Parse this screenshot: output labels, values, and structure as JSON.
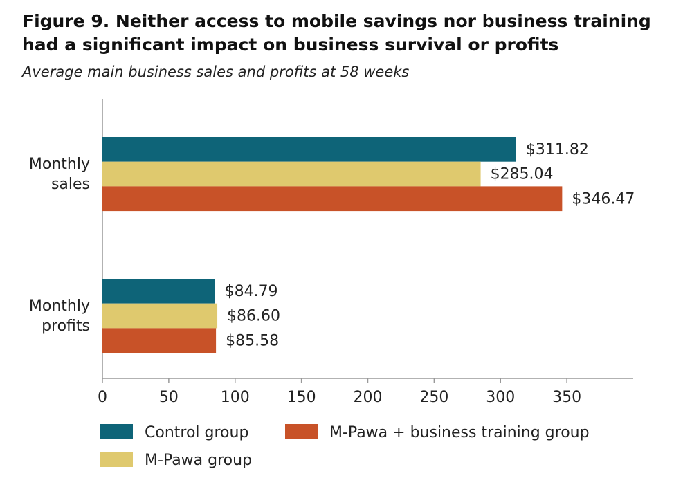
{
  "chart_data": {
    "type": "hbar",
    "title": "Figure 9. Neither access to mobile savings nor business training had a significant impact on business survival or profits",
    "subtitle": "Average main business sales and profits at 58 weeks",
    "categories": [
      "Monthly sales",
      "Monthly profits"
    ],
    "series": [
      {
        "name": "Control group",
        "color": "#0e6478",
        "values": [
          311.82,
          84.79
        ],
        "value_labels": [
          "$311.82",
          "$84.79"
        ]
      },
      {
        "name": "M-Pawa group",
        "color": "#dfc96e",
        "values": [
          285.04,
          86.6
        ],
        "value_labels": [
          "$285.04",
          "$86.60"
        ]
      },
      {
        "name": "M-Pawa + business training group",
        "color": "#c85228",
        "values": [
          346.47,
          85.58
        ],
        "value_labels": [
          "$346.47",
          "$85.58"
        ]
      }
    ],
    "xlim": [
      0,
      400
    ],
    "xticks": [
      0,
      50,
      100,
      150,
      200,
      250,
      300,
      350
    ],
    "legend": "bottom"
  }
}
